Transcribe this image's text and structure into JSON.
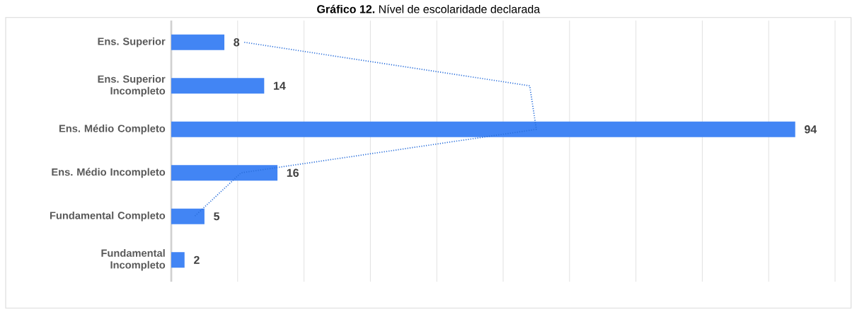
{
  "chart_data": {
    "type": "bar",
    "title": "**Gráfico 12.** Nível de escolaridade declarada",
    "orientation": "horizontal",
    "categories": [
      "Ens. Superior",
      "Ens. Superior Incompleto",
      "Ens. Médio Completo",
      "Ens. Médio Incompleto",
      "Fundamental Completo",
      "Fundamental Incompleto"
    ],
    "series": [
      {
        "color": "#4285f4",
        "values": [
          8,
          14,
          94,
          16,
          5,
          2
        ],
        "value_labels": [
          "8",
          "14",
          "94",
          "16",
          "5",
          "2"
        ]
      },
      {
        "type": "line",
        "color": "#2a6fdb",
        "line_style": "dotted",
        "marker": "none",
        "values": [
          11,
          54,
          55,
          10.5,
          3.5,
          null
        ]
      }
    ],
    "xlim": [
      0,
      100
    ],
    "xticks": [
      {
        "value": 0,
        "label": null
      },
      {
        "value": 10,
        "label": null
      },
      {
        "value": 20,
        "label": null
      },
      {
        "value": 30,
        "label": null
      },
      {
        "value": 40,
        "label": null
      },
      {
        "value": 50,
        "label": null
      },
      {
        "value": 60,
        "label": null
      },
      {
        "value": 70,
        "label": null
      },
      {
        "value": 80,
        "label": null
      },
      {
        "value": 90,
        "label": null
      },
      {
        "value": 100,
        "label": null
      }
    ],
    "grid": "x",
    "tick_labels": "y"
  }
}
